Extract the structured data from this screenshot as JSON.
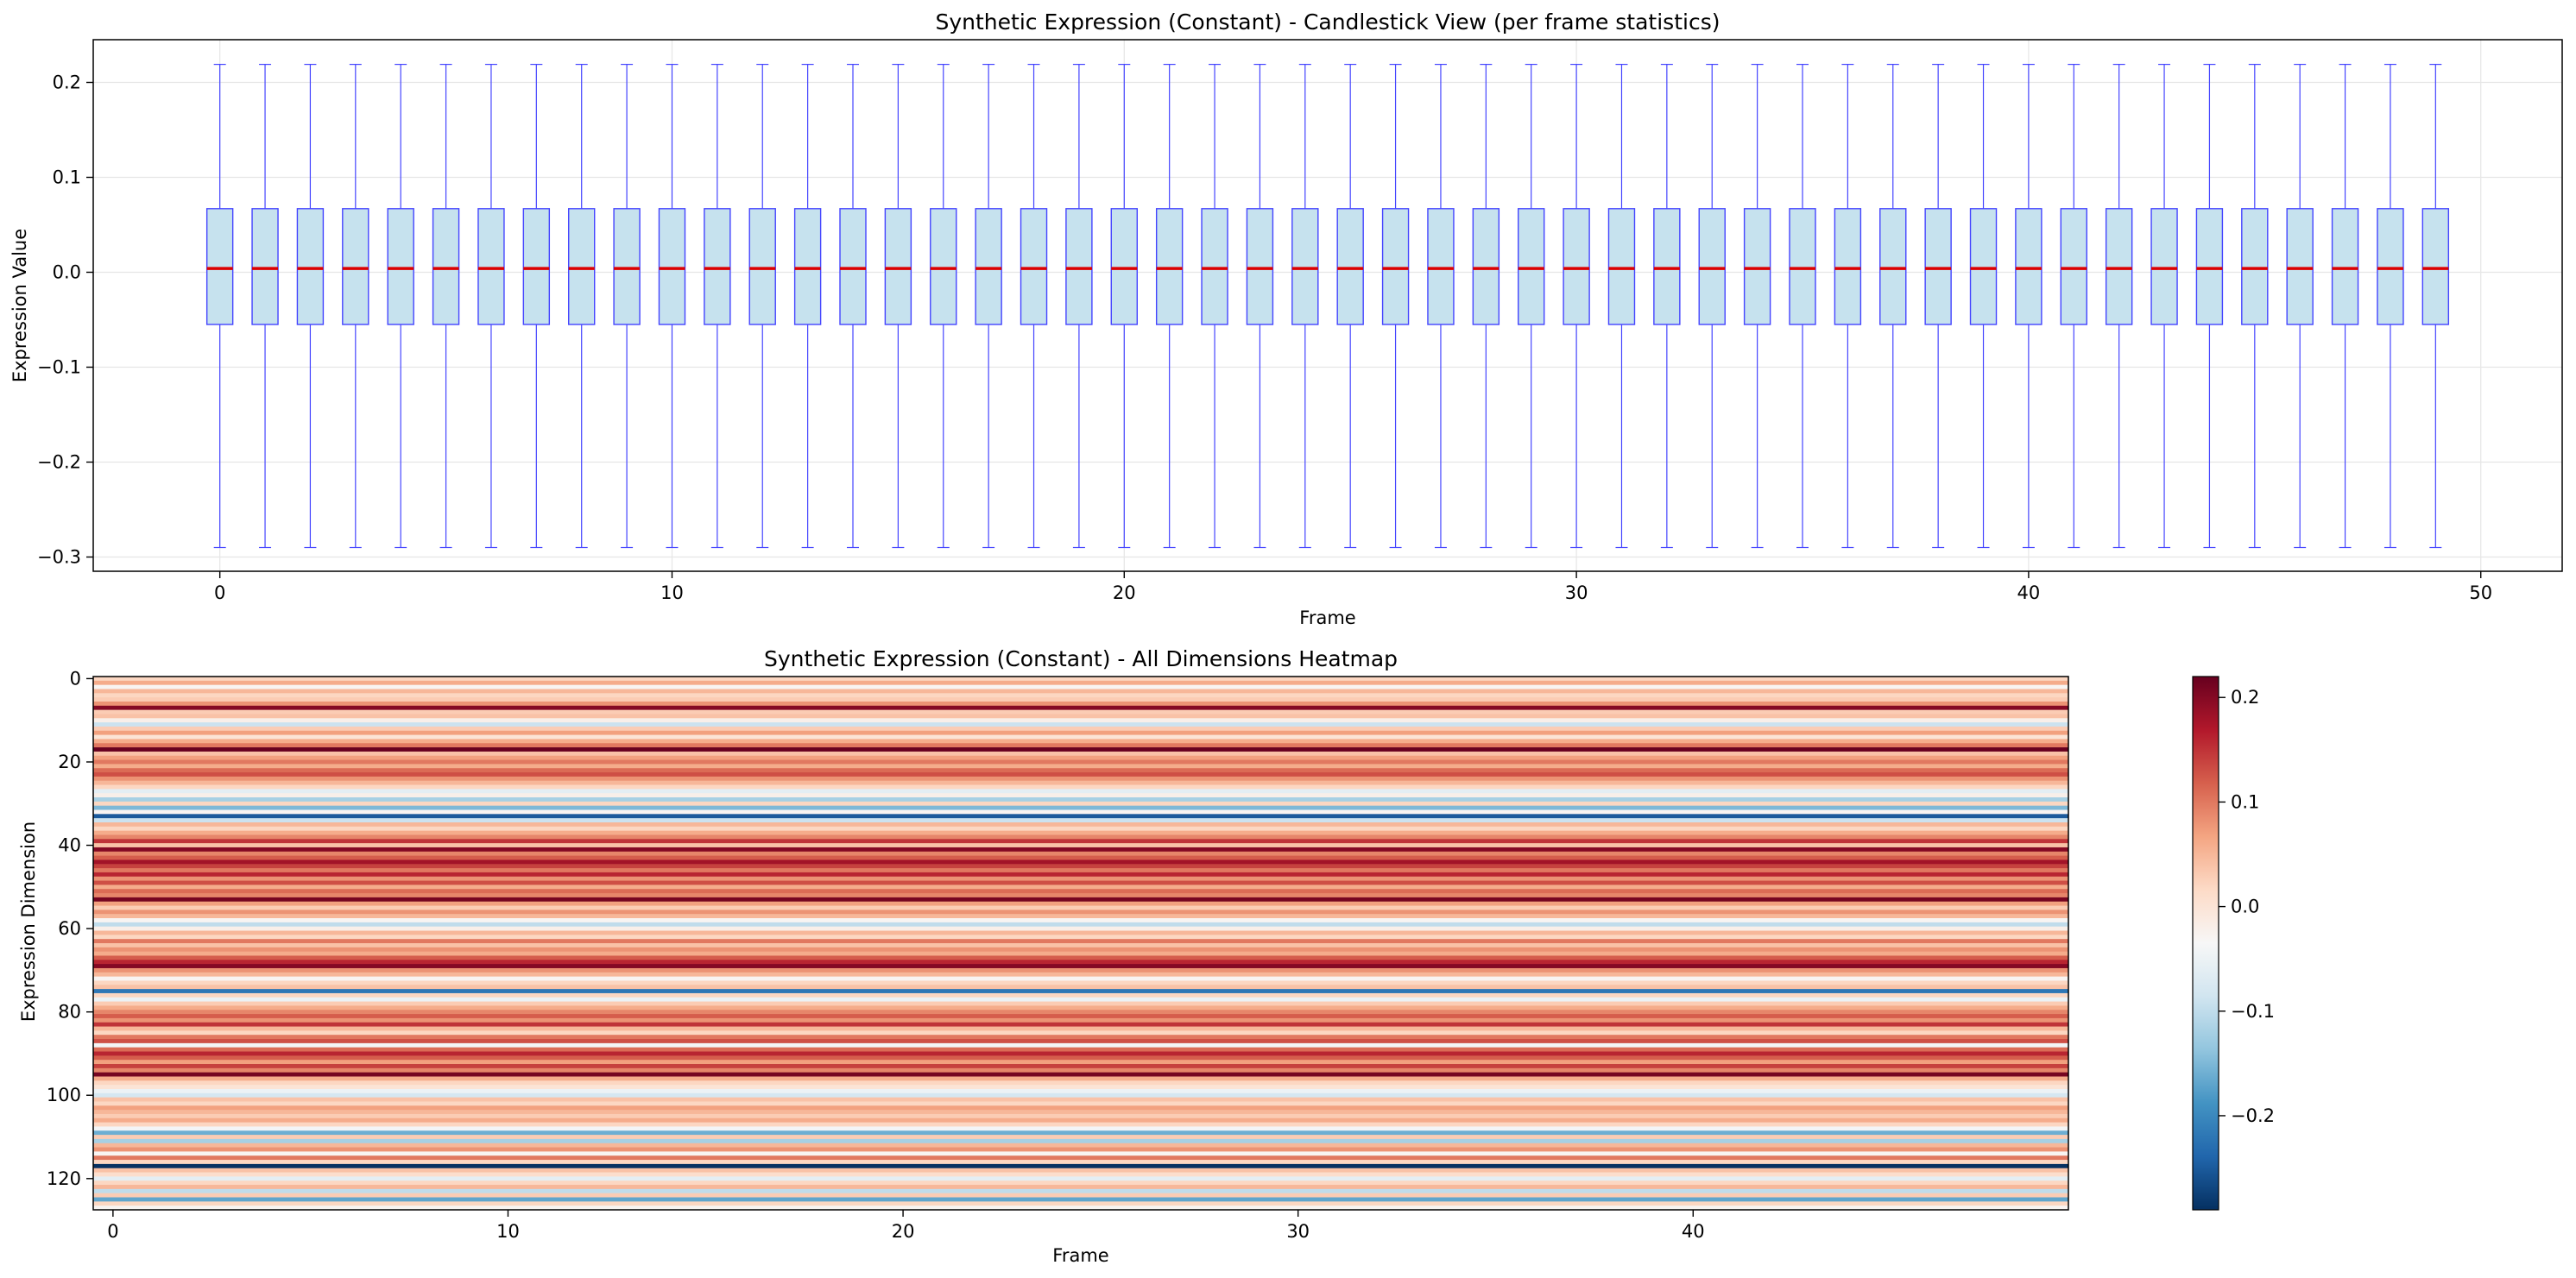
{
  "chart_data": [
    {
      "type": "box",
      "title": "Synthetic Expression (Constant) - Candlestick View (per frame statistics)",
      "xlabel": "Frame",
      "ylabel": "Expression Value",
      "x": [
        0,
        1,
        2,
        3,
        4,
        5,
        6,
        7,
        8,
        9,
        10,
        11,
        12,
        13,
        14,
        15,
        16,
        17,
        18,
        19,
        20,
        21,
        22,
        23,
        24,
        25,
        26,
        27,
        28,
        29,
        30,
        31,
        32,
        33,
        34,
        35,
        36,
        37,
        38,
        39,
        40,
        41,
        42,
        43,
        44,
        45,
        46,
        47,
        48,
        49
      ],
      "box_stats": {
        "whisker_low": -0.29,
        "q1": -0.055,
        "median": 0.004,
        "q3": 0.067,
        "whisker_high": 0.219
      },
      "xlim": [
        -2.8,
        51.8
      ],
      "ylim": [
        -0.315,
        0.245
      ],
      "xticks": [
        0,
        10,
        20,
        30,
        40,
        50
      ],
      "xtick_labels": [
        "0",
        "10",
        "20",
        "30",
        "40",
        "50"
      ],
      "yticks": [
        0.2,
        0.1,
        0.0,
        -0.1,
        -0.2,
        -0.3
      ],
      "ytick_labels": [
        "0.2",
        "0.1",
        "0.0",
        "−0.1",
        "−0.2",
        "−0.3"
      ],
      "grid": true,
      "box_color": "#c6e2ee",
      "line_color": "#4444ff",
      "median_color": "#dd0000"
    },
    {
      "type": "heatmap",
      "title": "Synthetic Expression (Constant) - All Dimensions Heatmap",
      "xlabel": "Frame",
      "ylabel": "Expression Dimension",
      "n_frames": 50,
      "n_dims": 128,
      "xticks": [
        0,
        10,
        20,
        30,
        40
      ],
      "xtick_labels": [
        "0",
        "10",
        "20",
        "30",
        "40"
      ],
      "yticks": [
        0,
        20,
        40,
        60,
        80,
        100,
        120
      ],
      "ytick_labels": [
        "0",
        "20",
        "40",
        "60",
        "80",
        "100",
        "120"
      ],
      "colormap": "RdBu_r",
      "vmin": -0.29,
      "vmax": 0.22,
      "colorbar_ticks": [
        0.2,
        0.1,
        0.0,
        -0.1,
        -0.2
      ],
      "colorbar_tick_labels": [
        "0.2",
        "0.1",
        "0.0",
        "−0.1",
        "−0.2"
      ],
      "row_values": [
        0.02,
        0.06,
        -0.03,
        0.05,
        0.02,
        0.03,
        0.08,
        0.2,
        0.03,
        0.04,
        -0.02,
        -0.09,
        0.03,
        0.07,
        0.0,
        0.06,
        0.1,
        0.22,
        0.04,
        0.07,
        0.1,
        0.06,
        0.11,
        0.13,
        0.08,
        0.05,
        0.02,
        -0.06,
        -0.02,
        -0.12,
        0.02,
        -0.15,
        -0.03,
        -0.25,
        -0.09,
        0.05,
        0.02,
        0.06,
        0.09,
        0.15,
        0.04,
        0.2,
        0.09,
        0.12,
        0.18,
        0.14,
        0.1,
        0.16,
        0.08,
        0.13,
        0.06,
        0.11,
        0.09,
        0.21,
        0.07,
        0.03,
        0.08,
        0.05,
        -0.03,
        -0.1,
        -0.02,
        0.05,
        0.02,
        0.1,
        0.04,
        0.08,
        0.06,
        0.12,
        0.16,
        0.2,
        0.08,
        0.05,
        -0.03,
        0.02,
        0.04,
        -0.22,
        0.02,
        -0.05,
        0.03,
        0.06,
        0.09,
        0.12,
        0.08,
        0.15,
        0.05,
        0.02,
        0.1,
        0.13,
        -0.04,
        0.11,
        0.16,
        0.12,
        0.07,
        0.14,
        0.09,
        0.21,
        0.06,
        0.02,
        0.0,
        -0.05,
        -0.08,
        0.04,
        0.02,
        0.07,
        0.05,
        0.03,
        0.06,
        0.02,
        -0.04,
        -0.16,
        0.03,
        -0.12,
        0.05,
        0.08,
        -0.03,
        0.1,
        0.02,
        -0.29,
        0.04,
        0.01,
        -0.06,
        0.02,
        0.05,
        -0.1,
        0.03,
        -0.17,
        0.02,
        -0.03
      ]
    }
  ]
}
